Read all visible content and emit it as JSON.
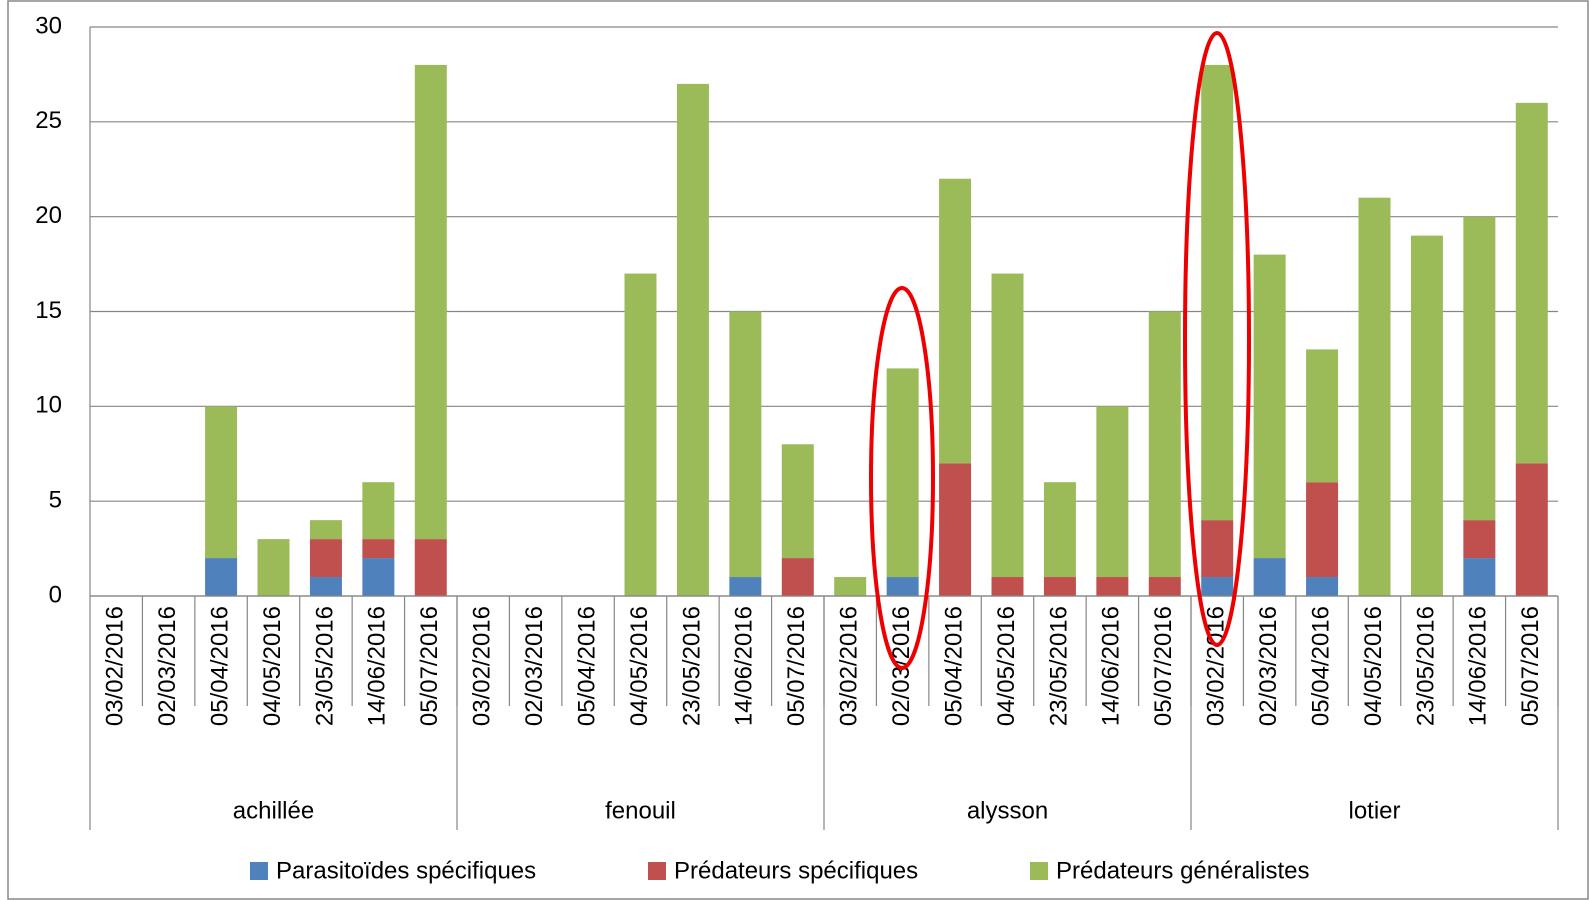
{
  "chart_data": {
    "type": "stacked_bar",
    "categories": [
      "03/02/2016",
      "02/03/2016",
      "05/04/2016",
      "04/05/2016",
      "23/05/2016",
      "14/06/2016",
      "05/07/2016",
      "03/02/2016",
      "02/03/2016",
      "05/04/2016",
      "04/05/2016",
      "23/05/2016",
      "14/06/2016",
      "05/07/2016",
      "03/02/2016",
      "02/03/2016",
      "05/04/2016",
      "04/05/2016",
      "23/05/2016",
      "14/06/2016",
      "05/07/2016",
      "03/02/2016",
      "02/03/2016",
      "05/04/2016",
      "04/05/2016",
      "23/05/2016",
      "14/06/2016",
      "05/07/2016"
    ],
    "groups": [
      "achillée",
      "fenouil",
      "alysson",
      "lotier"
    ],
    "series": [
      {
        "name": "Parasitoïdes spécifiques",
        "color": "#4f81bd",
        "values": [
          0,
          0,
          2,
          0,
          1,
          2,
          0,
          0,
          0,
          0,
          0,
          0,
          1,
          0,
          0,
          1,
          0,
          0,
          0,
          0,
          0,
          1,
          2,
          1,
          0,
          0,
          2,
          0
        ]
      },
      {
        "name": "Prédateurs spécifiques",
        "color": "#c0504d",
        "values": [
          0,
          0,
          0,
          0,
          2,
          1,
          3,
          0,
          0,
          0,
          0,
          0,
          0,
          2,
          0,
          0,
          7,
          1,
          1,
          1,
          1,
          3,
          0,
          5,
          0,
          0,
          2,
          7
        ]
      },
      {
        "name": "Prédateurs généralistes",
        "color": "#9bbb59",
        "values": [
          0,
          0,
          8,
          3,
          1,
          3,
          25,
          0,
          0,
          0,
          17,
          27,
          14,
          6,
          1,
          11,
          15,
          16,
          5,
          9,
          14,
          24,
          16,
          7,
          21,
          19,
          16,
          19
        ]
      }
    ],
    "ylim": [
      0,
      30
    ],
    "yticks": [
      0,
      5,
      10,
      15,
      20,
      25,
      30
    ],
    "grid": true,
    "legend": "bottom"
  }
}
